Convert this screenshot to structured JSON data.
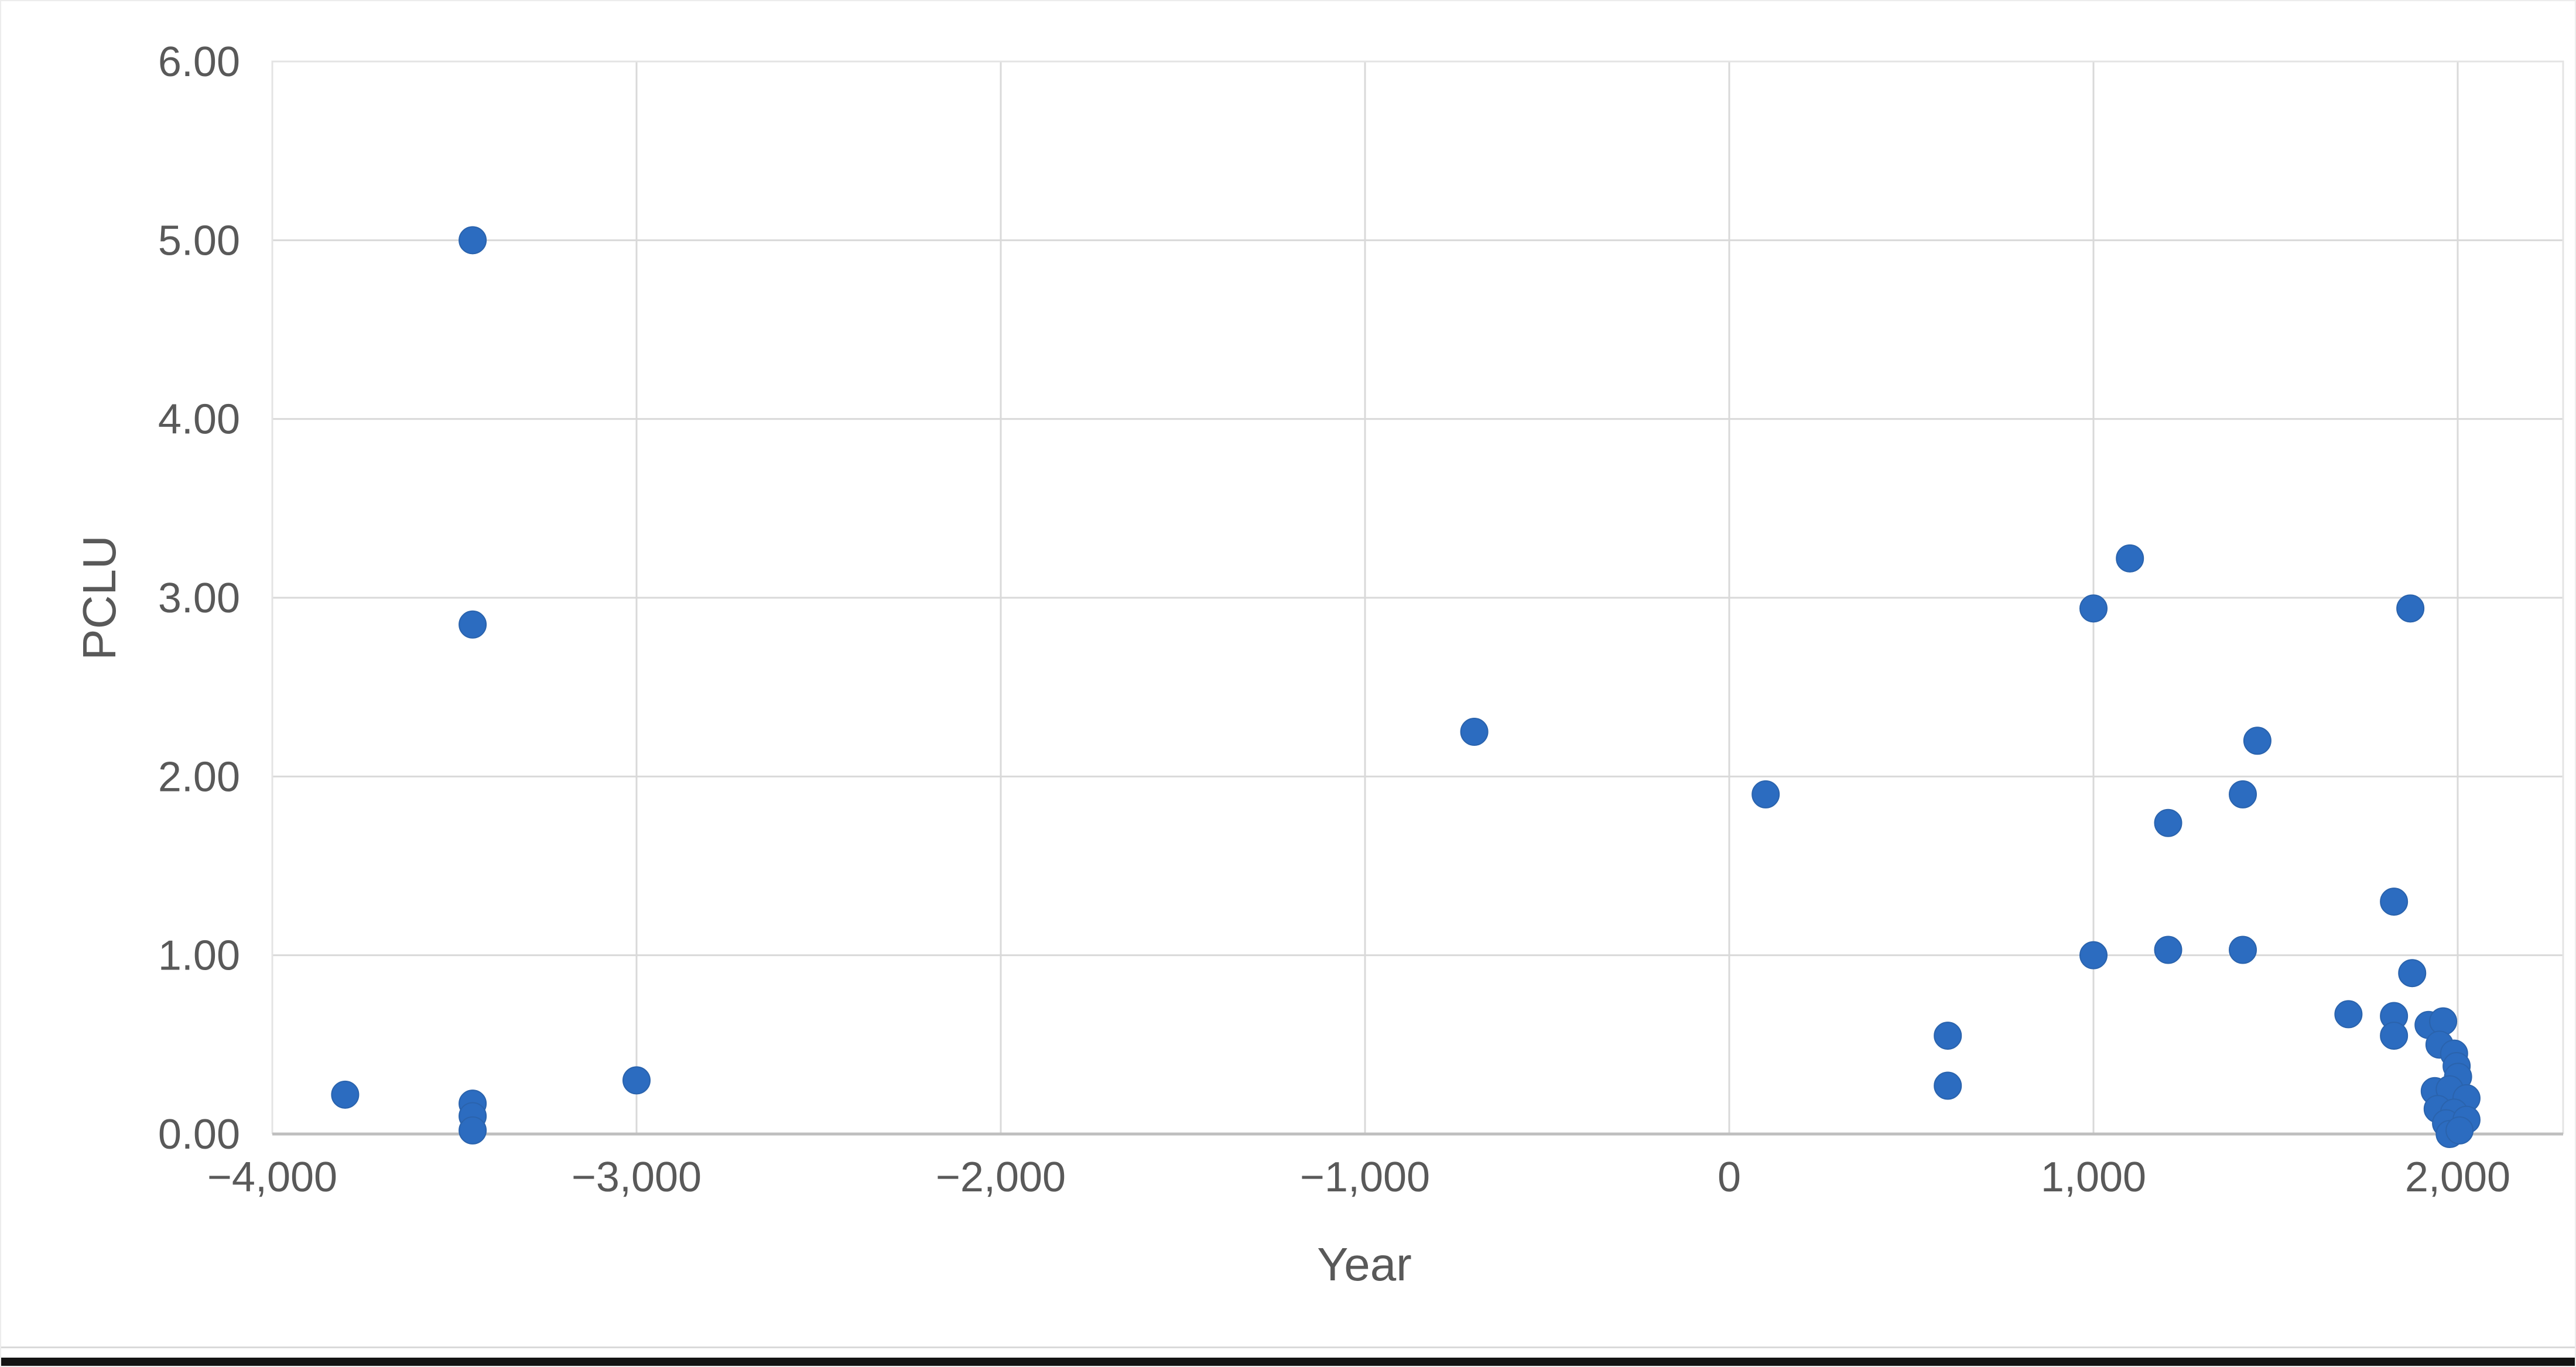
{
  "window": {
    "background": "#ffffff",
    "bottom_bar_color": "#141414"
  },
  "chart_data": {
    "type": "scatter",
    "title": "",
    "xlabel": "Year",
    "ylabel": "PCLU",
    "xlim": [
      -4000,
      2290
    ],
    "ylim": [
      0,
      6
    ],
    "grid": true,
    "legend": false,
    "marker_color": "#2C6CC0",
    "marker_edge_color": "#2A63AD",
    "gridline_color": "#D9D9D9",
    "axis_line_color": "#BFBFBF",
    "axis_text_color": "#595959",
    "x_ticks": [
      {
        "value": -4000,
        "label": "−4,000"
      },
      {
        "value": -3000,
        "label": "−3,000"
      },
      {
        "value": -2000,
        "label": "−2,000"
      },
      {
        "value": -1000,
        "label": "−1,000"
      },
      {
        "value": 0,
        "label": "0"
      },
      {
        "value": 1000,
        "label": "1,000"
      },
      {
        "value": 2000,
        "label": "2,000"
      }
    ],
    "y_ticks": [
      {
        "value": 0,
        "label": "0.00"
      },
      {
        "value": 1,
        "label": "1.00"
      },
      {
        "value": 2,
        "label": "2.00"
      },
      {
        "value": 3,
        "label": "3.00"
      },
      {
        "value": 4,
        "label": "4.00"
      },
      {
        "value": 5,
        "label": "5.00"
      },
      {
        "value": 6,
        "label": "6.00"
      }
    ],
    "points": [
      {
        "year": -3800,
        "pclu": 0.22
      },
      {
        "year": -3450,
        "pclu": 5.0
      },
      {
        "year": -3450,
        "pclu": 2.85
      },
      {
        "year": -3450,
        "pclu": 0.17
      },
      {
        "year": -3450,
        "pclu": 0.1
      },
      {
        "year": -3450,
        "pclu": 0.02
      },
      {
        "year": -3000,
        "pclu": 0.3
      },
      {
        "year": -700,
        "pclu": 2.25
      },
      {
        "year": 100,
        "pclu": 1.9
      },
      {
        "year": 600,
        "pclu": 0.55
      },
      {
        "year": 600,
        "pclu": 0.27
      },
      {
        "year": 1000,
        "pclu": 2.94
      },
      {
        "year": 1000,
        "pclu": 1.0
      },
      {
        "year": 1100,
        "pclu": 3.22
      },
      {
        "year": 1205,
        "pclu": 1.74
      },
      {
        "year": 1205,
        "pclu": 1.03
      },
      {
        "year": 1410,
        "pclu": 1.9
      },
      {
        "year": 1410,
        "pclu": 1.03
      },
      {
        "year": 1450,
        "pclu": 2.2
      },
      {
        "year": 1700,
        "pclu": 0.67
      },
      {
        "year": 1825,
        "pclu": 1.3
      },
      {
        "year": 1870,
        "pclu": 2.94
      },
      {
        "year": 1875,
        "pclu": 0.9
      },
      {
        "year": 1825,
        "pclu": 0.66
      },
      {
        "year": 1825,
        "pclu": 0.55
      },
      {
        "year": 1920,
        "pclu": 0.61
      },
      {
        "year": 1960,
        "pclu": 0.63
      },
      {
        "year": 1950,
        "pclu": 0.5
      },
      {
        "year": 1990,
        "pclu": 0.45
      },
      {
        "year": 1997,
        "pclu": 0.38
      },
      {
        "year": 2001,
        "pclu": 0.32
      },
      {
        "year": 1937,
        "pclu": 0.24
      },
      {
        "year": 1978,
        "pclu": 0.25
      },
      {
        "year": 2024,
        "pclu": 0.2
      },
      {
        "year": 1945,
        "pclu": 0.14
      },
      {
        "year": 1990,
        "pclu": 0.12
      },
      {
        "year": 1968,
        "pclu": 0.06
      },
      {
        "year": 2024,
        "pclu": 0.08
      },
      {
        "year": 1978,
        "pclu": 0.0
      },
      {
        "year": 2005,
        "pclu": 0.02
      }
    ]
  }
}
